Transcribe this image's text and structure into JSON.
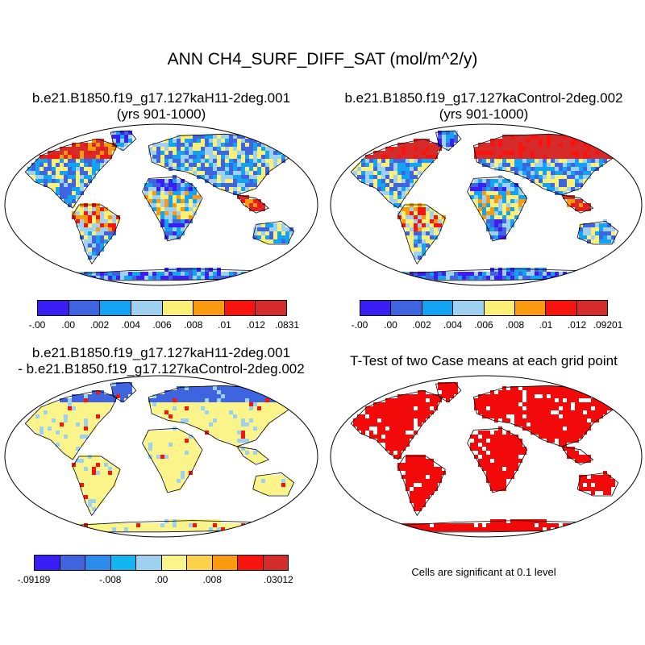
{
  "main_title": "ANN CH4_SURF_DIFF_SAT (mol/m^2/y)",
  "panels": {
    "top_left": {
      "title_line1": "b.e21.B1850.f19_g17.127kaH11-2deg.001",
      "title_line2": "(yrs 901-1000)"
    },
    "top_right": {
      "title_line1": "b.e21.B1850.f19_g17.127kaControl-2deg.002",
      "title_line2": "(yrs 901-1000)"
    },
    "bottom_left": {
      "title_line1": "b.e21.B1850.f19_g17.127kaH11-2deg.001",
      "title_line2": "- b.e21.B1850.f19_g17.127kaControl-2deg.002"
    },
    "bottom_right": {
      "title_line1": "T-Test of two Case means at each grid point",
      "note": "Cells are significant at 0.1 level"
    }
  },
  "colorbars": {
    "top_left": {
      "colors": [
        "#3a1ef5",
        "#3f64e0",
        "#14a3f2",
        "#9ed1ef",
        "#fbef76",
        "#fb9a0f",
        "#f8140e",
        "#d52b2b"
      ],
      "labels": [
        "-.00",
        ".00",
        ".002",
        ".004",
        ".006",
        ".008",
        ".01",
        ".012",
        ".0831"
      ]
    },
    "top_right": {
      "colors": [
        "#3a1ef5",
        "#3f64e0",
        "#14a3f2",
        "#9ed1ef",
        "#fbef76",
        "#fb9a0f",
        "#f8140e",
        "#d52b2b"
      ],
      "labels": [
        "-.00",
        ".00",
        ".002",
        ".004",
        ".006",
        ".008",
        ".01",
        ".012",
        ".09201"
      ]
    },
    "bottom_left": {
      "colors": [
        "#3a1ef5",
        "#3f64e0",
        "#2c8cec",
        "#14b6f2",
        "#9ed1ef",
        "#fbf48a",
        "#fbd24a",
        "#fb9a0f",
        "#f8140e",
        "#d52b2b"
      ],
      "labels": [
        "-.09189",
        "",
        "-.008",
        "",
        ".00",
        "",
        ".008",
        "",
        ".03012"
      ]
    }
  },
  "map_colors": {
    "ocean": "#ffffff",
    "coast": "#000000",
    "significant": "#f20a0a"
  }
}
